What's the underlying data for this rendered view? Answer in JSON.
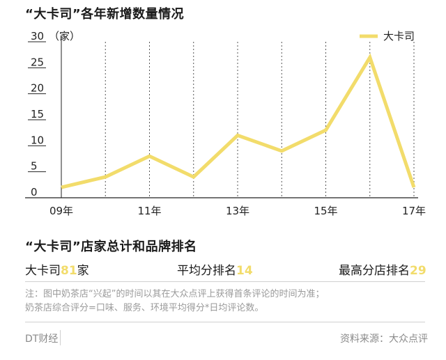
{
  "title": "“大卡司”各年新增数量情况",
  "chart_data": {
    "type": "line",
    "unit_label": "（家）",
    "x": [
      "09年",
      "10年",
      "11年",
      "12年",
      "13年",
      "14年",
      "15年",
      "16年",
      "17年"
    ],
    "x_tick_labels": [
      "09年",
      "",
      "11年",
      "",
      "13年",
      "",
      "15年",
      "",
      "17年"
    ],
    "y_ticks": [
      "0",
      "5",
      "10",
      "15",
      "20",
      "25",
      "30"
    ],
    "ylim": [
      0,
      30
    ],
    "series": [
      {
        "name": "大卡司",
        "values": [
          2,
          4,
          8,
          4,
          12,
          9,
          13,
          27,
          2
        ]
      }
    ],
    "grid": "vertical dashed",
    "legend_position": "top-right",
    "color": "#f2dc6b"
  },
  "summary": {
    "title": "“大卡司”店家总计和品牌排名",
    "items": [
      {
        "label": "大卡司",
        "value": "81",
        "suffix": "家"
      },
      {
        "label": "平均分排名",
        "value": "14",
        "suffix": ""
      },
      {
        "label": "最高分店排名",
        "value": "29",
        "suffix": ""
      }
    ]
  },
  "note": {
    "line1": "注：图中奶茶店“兴起”的时间以其在大众点评上获得首条评论的时间为准；",
    "line2": "奶茶店综合评分=口味、服务、环境平均得分*日均评论数。"
  },
  "footer": {
    "brand": "DT财经",
    "source": "资料来源：大众点评"
  }
}
